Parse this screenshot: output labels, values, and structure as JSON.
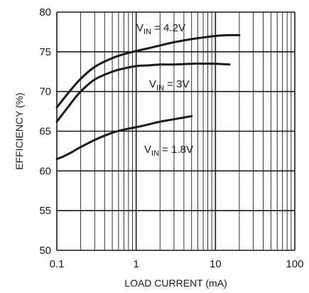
{
  "chart_data": {
    "type": "line",
    "title": "",
    "xlabel": "LOAD CURRENT (mA)",
    "ylabel": "EFFICIENCY (%)",
    "xscale": "log",
    "xlim": [
      0.1,
      100
    ],
    "ylim": [
      50,
      80
    ],
    "x_ticks": [
      {
        "value": 0.1,
        "label": "0.1"
      },
      {
        "value": 1,
        "label": "1"
      },
      {
        "value": 10,
        "label": "10"
      },
      {
        "value": 100,
        "label": "100"
      }
    ],
    "y_ticks": [
      50,
      55,
      60,
      65,
      70,
      75,
      80
    ],
    "grid": true,
    "line_color": "#1a1a1a",
    "series": [
      {
        "label_main": "V",
        "label_sub": "IN",
        "label_rest": " = 4.2V",
        "x": [
          0.1,
          0.15,
          0.2,
          0.3,
          0.5,
          0.7,
          1,
          1.5,
          2,
          3,
          5,
          7,
          10,
          15,
          20
        ],
        "y": [
          68,
          70.2,
          71.6,
          73.1,
          74.2,
          74.7,
          75.1,
          75.5,
          75.8,
          76.2,
          76.6,
          76.8,
          77.0,
          77.1,
          77.1
        ]
      },
      {
        "label_main": "V",
        "label_sub": "IN",
        "label_rest": " = 3V",
        "x": [
          0.1,
          0.15,
          0.2,
          0.3,
          0.5,
          0.7,
          1,
          1.5,
          2,
          3,
          5,
          7,
          10,
          15
        ],
        "y": [
          66.2,
          68.5,
          70.0,
          71.5,
          72.5,
          72.9,
          73.2,
          73.3,
          73.4,
          73.4,
          73.5,
          73.5,
          73.5,
          73.4
        ]
      },
      {
        "label_main": "V",
        "label_sub": "IN",
        "label_rest": " = 1.8V",
        "x": [
          0.1,
          0.12,
          0.15,
          0.2,
          0.3,
          0.5,
          0.7,
          1,
          1.5,
          2,
          3,
          5
        ],
        "y": [
          61.5,
          61.8,
          62.3,
          63.0,
          63.9,
          64.8,
          65.2,
          65.5,
          65.9,
          66.2,
          66.5,
          66.9
        ]
      }
    ]
  }
}
